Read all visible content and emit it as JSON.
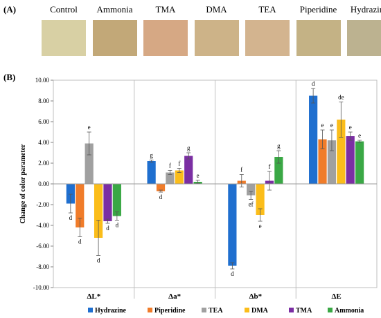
{
  "panel_a_label": "(A)",
  "panel_b_label": "(B)",
  "swatches": [
    {
      "name": "Control",
      "color": "#d8d0a4"
    },
    {
      "name": "Ammonia",
      "color": "#c2a878"
    },
    {
      "name": "TMA",
      "color": "#d6a884"
    },
    {
      "name": "DMA",
      "color": "#cdb388"
    },
    {
      "name": "TEA",
      "color": "#d3b48f"
    },
    {
      "name": "Piperidine",
      "color": "#c4b285"
    },
    {
      "name": "Hydrazine",
      "color": "#bcb290"
    }
  ],
  "chart_data": {
    "type": "bar",
    "categories": [
      "ΔL*",
      "Δa*",
      "Δb*",
      "ΔE"
    ],
    "ylabel": "Change of color parameter",
    "ylim": [
      -10,
      10
    ],
    "ytick_step": 2,
    "ytick_labels": [
      "10.00",
      "8.00",
      "6.00",
      "4.00",
      "2.00",
      "0.00",
      "-2.00",
      "-4.00",
      "-6.00",
      "-8.00",
      "-10.00"
    ],
    "legend_position": "bottom",
    "series": [
      {
        "name": "Hydrazine",
        "color": "#1f6fcf",
        "values": [
          -1.9,
          2.2,
          -7.9,
          8.5
        ],
        "errors": [
          0.9,
          0.1,
          0.3,
          0.7
        ],
        "labels": [
          "d",
          "g",
          "d",
          "d"
        ]
      },
      {
        "name": "Piperidine",
        "color": "#f07c2a",
        "values": [
          -4.2,
          -0.7,
          0.3,
          4.3
        ],
        "errors": [
          0.9,
          0.1,
          0.6,
          0.9
        ],
        "labels": [
          "d",
          "d",
          "f",
          "e"
        ]
      },
      {
        "name": "TEA",
        "color": "#a0a0a0",
        "values": [
          3.9,
          1.1,
          -1.1,
          4.2
        ],
        "errors": [
          1.1,
          0.2,
          0.4,
          1.0
        ],
        "labels": [
          "e",
          "f",
          "ef",
          "e"
        ]
      },
      {
        "name": "DMA",
        "color": "#fbbd1a",
        "values": [
          -5.2,
          1.3,
          -3.0,
          6.2
        ],
        "errors": [
          1.7,
          0.2,
          0.6,
          1.7
        ],
        "labels": [
          "d",
          "f",
          "e",
          "de"
        ]
      },
      {
        "name": "TMA",
        "color": "#7b2ea3",
        "values": [
          -3.6,
          2.7,
          0.3,
          4.6
        ],
        "errors": [
          0.2,
          0.3,
          0.9,
          0.4
        ],
        "labels": [
          "d",
          "g",
          "f",
          "e"
        ]
      },
      {
        "name": "Ammonia",
        "color": "#3aa845",
        "values": [
          -3.1,
          0.2,
          2.6,
          4.1
        ],
        "errors": [
          0.4,
          0.15,
          0.6,
          0.1
        ],
        "labels": [
          "d",
          "e",
          "g",
          "e"
        ]
      }
    ]
  }
}
